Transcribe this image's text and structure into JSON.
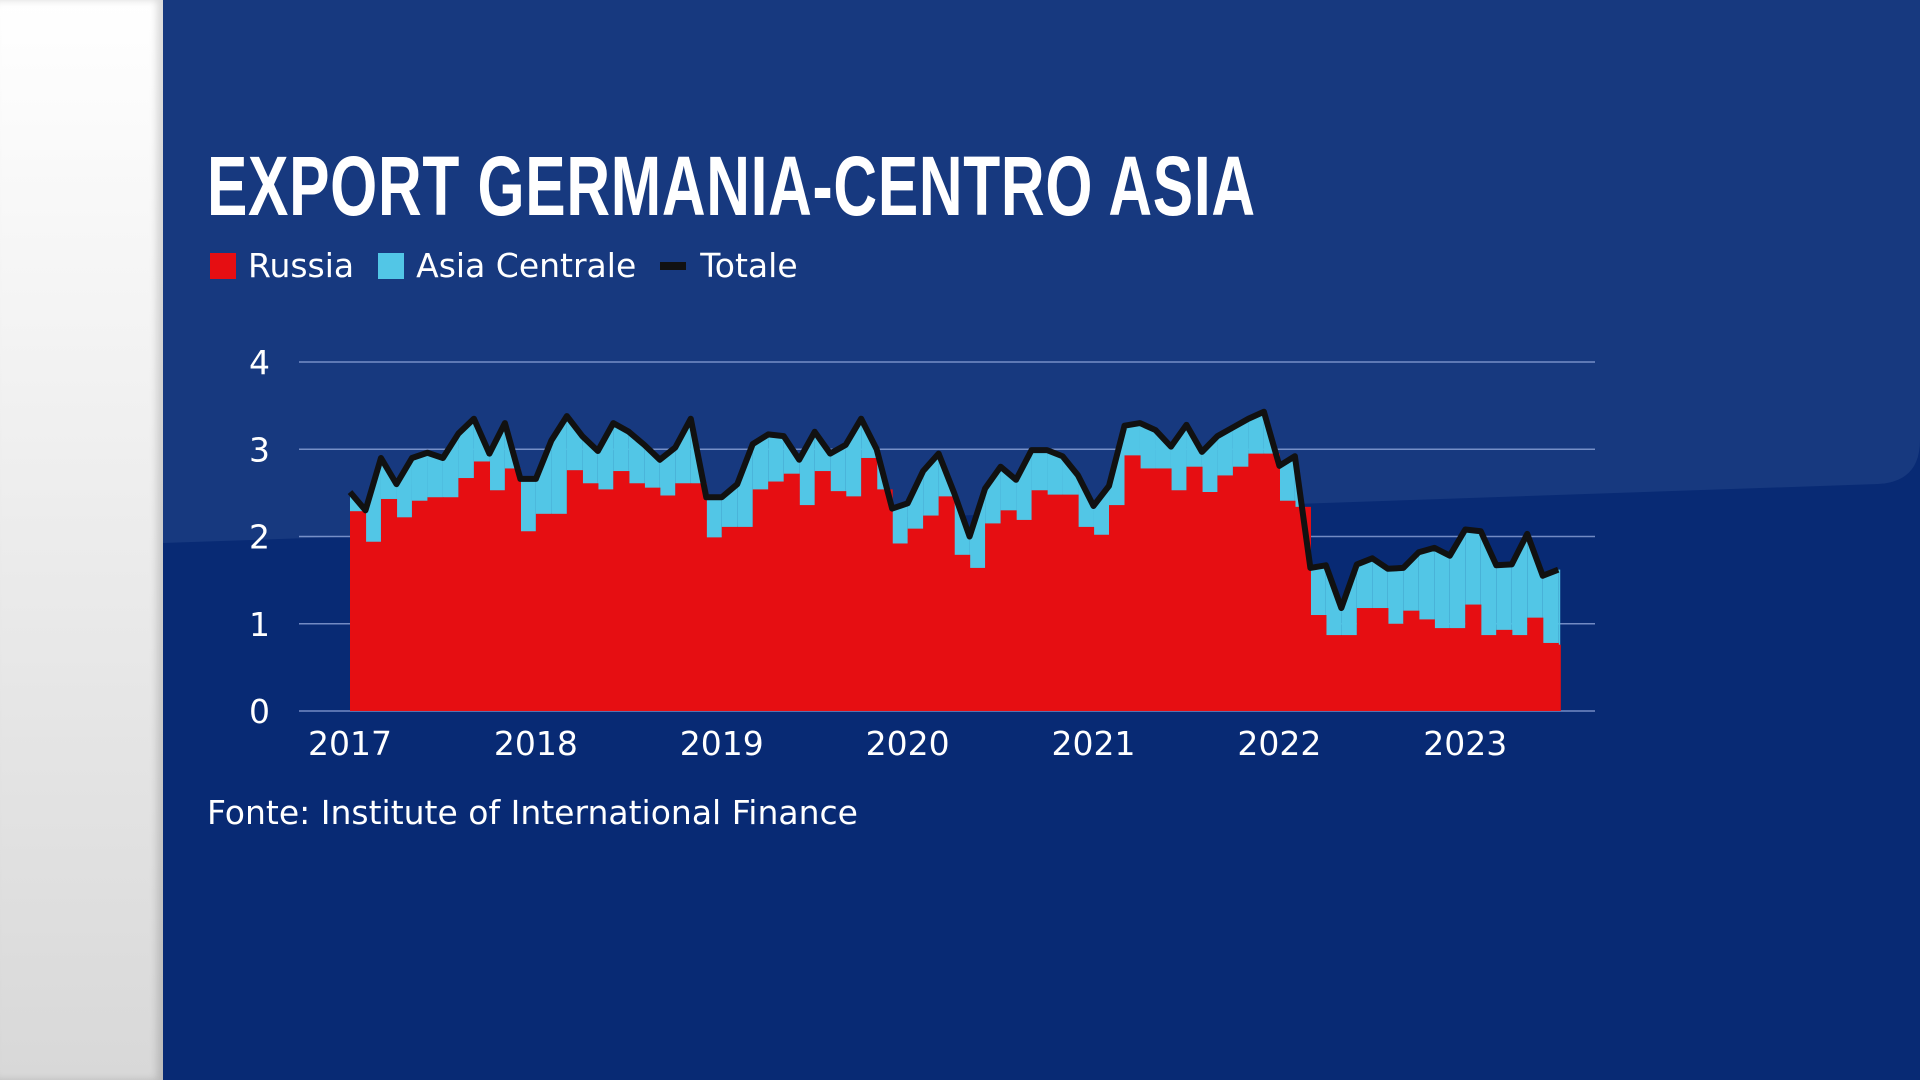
{
  "title": "EXPORT GERMANIA-CENTRO ASIA",
  "source": "Fonte: Institute of International Finance",
  "colors": {
    "russia": "#e60e12",
    "asia_centrale": "#52c6e6",
    "totale": "#111111",
    "background": "#082a74"
  },
  "chart_data": {
    "type": "area",
    "stacked": true,
    "title": "EXPORT GERMANIA-CENTRO ASIA",
    "xlabel": "",
    "ylabel": "",
    "ylim": [
      0,
      4
    ],
    "yticks": [
      "0",
      "1",
      "2",
      "3",
      "4"
    ],
    "xticks": [
      "2017",
      "2018",
      "2019",
      "2020",
      "2021",
      "2022",
      "2023"
    ],
    "grid": true,
    "legend_position": "top-left",
    "x_start": "2017-01",
    "x_end": "2023-07",
    "frequency": "monthly",
    "series": [
      {
        "name": "Russia",
        "type": "area-step",
        "values": [
          2.29,
          1.94,
          2.43,
          2.22,
          2.41,
          2.45,
          2.45,
          2.67,
          2.86,
          2.53,
          2.78,
          2.06,
          2.26,
          2.26,
          2.76,
          2.61,
          2.54,
          2.75,
          2.61,
          2.56,
          2.47,
          2.61,
          2.61,
          1.99,
          2.11,
          2.11,
          2.54,
          2.63,
          2.72,
          2.36,
          2.75,
          2.52,
          2.46,
          2.9,
          2.54,
          1.92,
          2.09,
          2.24,
          2.46,
          1.79,
          1.64,
          2.15,
          2.3,
          2.19,
          2.53,
          2.48,
          2.48,
          2.11,
          2.02,
          2.36,
          2.93,
          2.78,
          2.78,
          2.53,
          2.8,
          2.51,
          2.7,
          2.8,
          2.95,
          2.95,
          2.41,
          2.34,
          1.1,
          0.87,
          0.87,
          1.18,
          1.18,
          1.0,
          1.15,
          1.05,
          0.95,
          0.95,
          1.22,
          0.87,
          0.93,
          0.87,
          1.07,
          0.78,
          0.76
        ]
      },
      {
        "name": "Asia Centrale",
        "type": "area",
        "values": [
          0.22,
          0.36,
          0.47,
          0.38,
          0.49,
          0.51,
          0.45,
          0.51,
          0.49,
          0.42,
          0.52,
          0.6,
          0.4,
          0.84,
          0.62,
          0.54,
          0.44,
          0.55,
          0.59,
          0.49,
          0.41,
          0.41,
          0.74,
          0.46,
          0.34,
          0.49,
          0.52,
          0.54,
          0.43,
          0.52,
          0.45,
          0.43,
          0.59,
          0.45,
          0.46,
          0.4,
          0.29,
          0.51,
          0.49,
          0.71,
          0.36,
          0.4,
          0.5,
          0.46,
          0.46,
          0.51,
          0.44,
          0.59,
          0.33,
          0.22,
          0.34,
          0.52,
          0.44,
          0.5,
          0.48,
          0.46,
          0.45,
          0.45,
          0.4,
          0.48,
          0.4,
          0.58,
          0.54,
          0.8,
          0.31,
          0.5,
          0.57,
          0.63,
          0.49,
          0.77,
          0.92,
          0.83,
          0.86,
          1.19,
          0.74,
          0.81,
          0.96,
          0.77,
          0.86
        ]
      },
      {
        "name": "Totale",
        "type": "line",
        "values": [
          2.51,
          2.3,
          2.9,
          2.6,
          2.9,
          2.96,
          2.9,
          3.18,
          3.35,
          2.95,
          3.3,
          2.66,
          2.66,
          3.1,
          3.38,
          3.15,
          2.98,
          3.3,
          3.2,
          3.05,
          2.88,
          3.02,
          3.35,
          2.45,
          2.45,
          2.6,
          3.06,
          3.17,
          3.15,
          2.88,
          3.2,
          2.95,
          3.05,
          3.35,
          3.0,
          2.32,
          2.38,
          2.75,
          2.95,
          2.5,
          2.0,
          2.55,
          2.8,
          2.65,
          2.99,
          2.99,
          2.92,
          2.7,
          2.35,
          2.58,
          3.27,
          3.3,
          3.22,
          3.03,
          3.28,
          2.97,
          3.15,
          3.25,
          3.35,
          3.43,
          2.81,
          2.92,
          1.64,
          1.67,
          1.18,
          1.68,
          1.75,
          1.63,
          1.64,
          1.82,
          1.87,
          1.78,
          2.08,
          2.06,
          1.67,
          1.68,
          2.03,
          1.55,
          1.62
        ]
      }
    ]
  }
}
